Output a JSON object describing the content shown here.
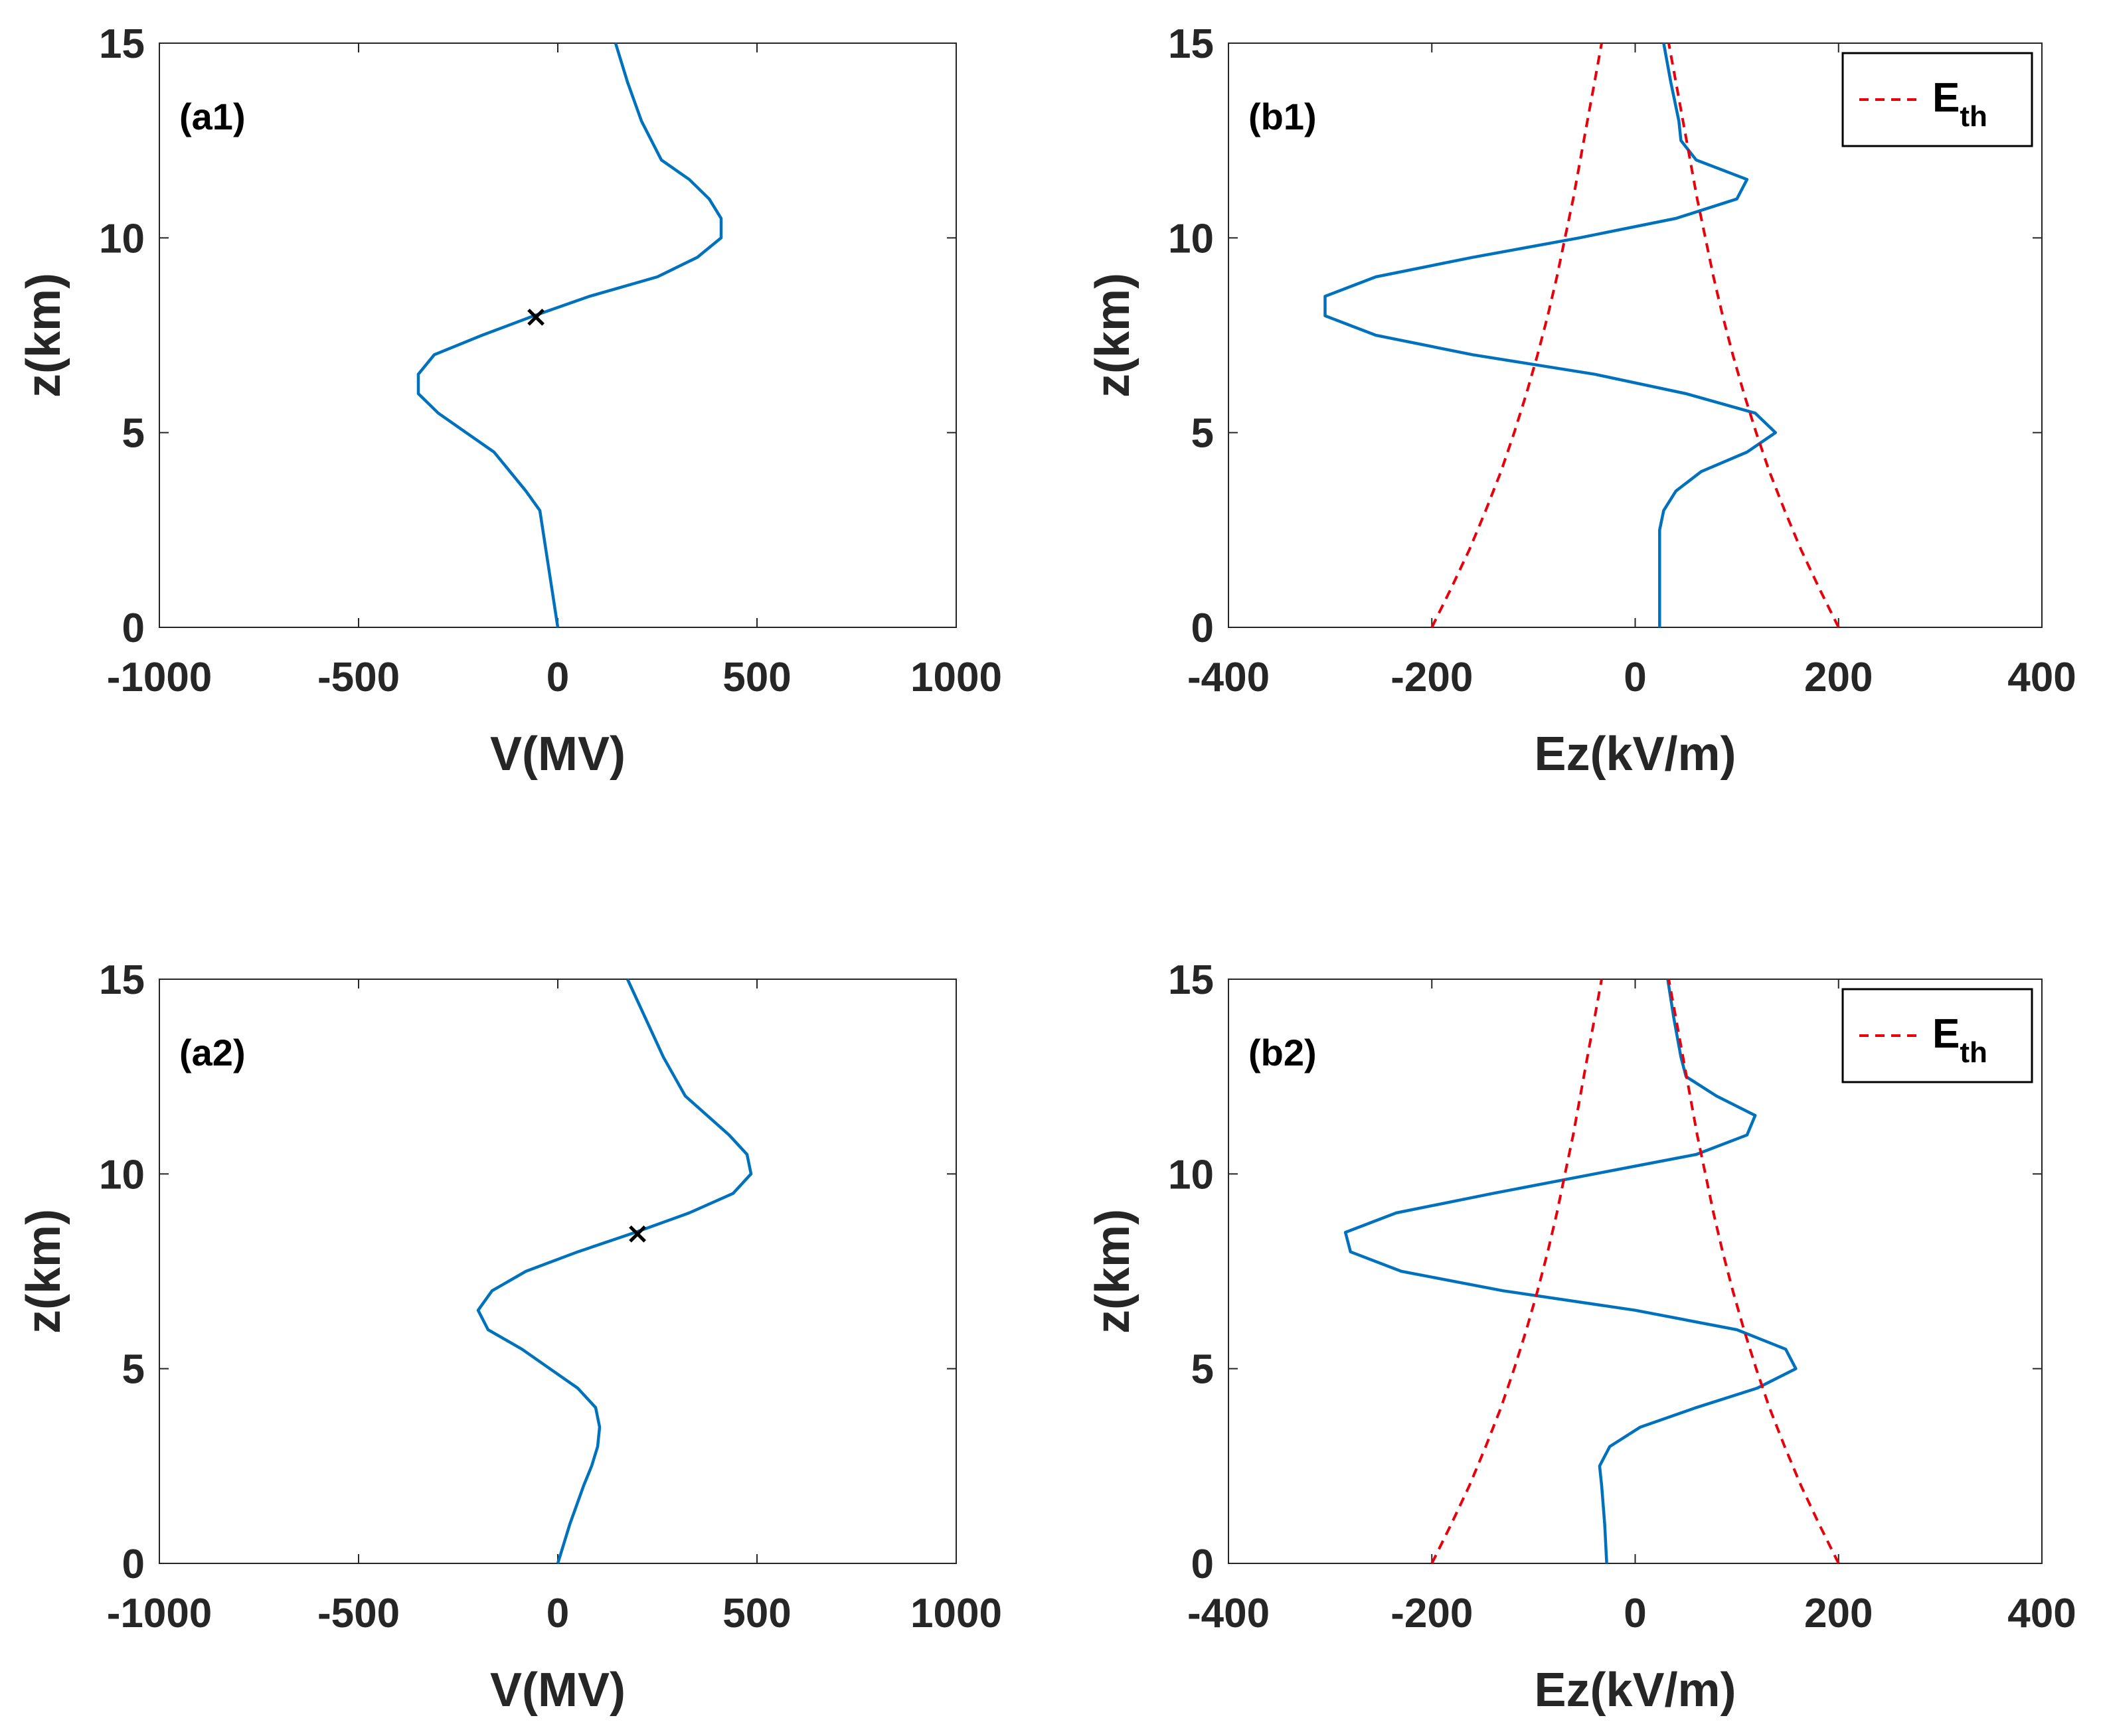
{
  "colors": {
    "curve": "#0072BD",
    "threshold": "#E8000B",
    "axis": "#262626",
    "marker": "#000000"
  },
  "chart_data": [
    {
      "id": "a1",
      "type": "line",
      "panel_label": "(a1)",
      "xlabel": "V(MV)",
      "ylabel": "z(km)",
      "xlim": [
        -1000,
        1000
      ],
      "ylim": [
        0,
        15
      ],
      "xticks": [
        "-1000",
        "-500",
        "0",
        "500",
        "1000"
      ],
      "yticks": [
        "0",
        "5",
        "10",
        "15"
      ],
      "series": [
        {
          "name": "V",
          "z": [
            0,
            1,
            2,
            3,
            3.5,
            4,
            4.5,
            5,
            5.5,
            6,
            6.5,
            7,
            7.5,
            8,
            8.5,
            9,
            9.5,
            10,
            10.5,
            11,
            11.5,
            12,
            13,
            14,
            15
          ],
          "v": [
            0,
            -15,
            -30,
            -45,
            -80,
            -120,
            -160,
            -230,
            -300,
            -350,
            -350,
            -310,
            -190,
            -60,
            80,
            250,
            350,
            410,
            410,
            380,
            330,
            260,
            210,
            175,
            145
          ]
        }
      ],
      "marker": {
        "label": "×",
        "x": -55,
        "z": 8
      }
    },
    {
      "id": "b1",
      "type": "line",
      "panel_label": "(b1)",
      "xlabel": "Ez(kV/m)",
      "ylabel": "z(km)",
      "xlim": [
        -400,
        400
      ],
      "ylim": [
        0,
        15
      ],
      "xticks": [
        "-400",
        "-200",
        "0",
        "200",
        "400"
      ],
      "yticks": [
        "0",
        "5",
        "10",
        "15"
      ],
      "legend": {
        "main": "E",
        "sub": "th",
        "position": "top-right"
      },
      "series": [
        {
          "name": "Ez",
          "z": [
            0,
            1,
            2,
            2.5,
            3,
            3.5,
            4,
            4.5,
            5,
            5.5,
            6,
            6.5,
            7,
            7.5,
            8,
            8.5,
            9,
            9.5,
            10,
            10.5,
            11,
            11.5,
            12,
            12.5,
            13,
            14,
            15
          ],
          "v": [
            24,
            24,
            24,
            24,
            28,
            40,
            65,
            110,
            138,
            118,
            50,
            -40,
            -160,
            -255,
            -305,
            -305,
            -255,
            -160,
            -55,
            40,
            100,
            110,
            60,
            45,
            43,
            35,
            28
          ]
        },
        {
          "name": "E_th (+)",
          "z": [
            0,
            1,
            2,
            3,
            4,
            5,
            6,
            7,
            8,
            9,
            10,
            11,
            12,
            13,
            14,
            15
          ],
          "v": [
            200,
            181,
            163,
            147,
            132,
            119,
            107,
            96,
            86,
            77,
            69,
            61,
            54,
            47,
            40,
            33
          ]
        },
        {
          "name": "E_th (-)",
          "z": [
            0,
            1,
            2,
            3,
            4,
            5,
            6,
            7,
            8,
            9,
            10,
            11,
            12,
            13,
            14,
            15
          ],
          "v": [
            -200,
            -181,
            -163,
            -147,
            -132,
            -119,
            -107,
            -96,
            -86,
            -77,
            -69,
            -61,
            -54,
            -47,
            -40,
            -33
          ]
        }
      ]
    },
    {
      "id": "a2",
      "type": "line",
      "panel_label": "(a2)",
      "xlabel": "V(MV)",
      "ylabel": "z(km)",
      "xlim": [
        -1000,
        1000
      ],
      "ylim": [
        0,
        15
      ],
      "xticks": [
        "-1000",
        "-500",
        "0",
        "500",
        "1000"
      ],
      "yticks": [
        "0",
        "5",
        "10",
        "15"
      ],
      "series": [
        {
          "name": "V",
          "z": [
            0,
            1,
            2,
            2.5,
            3,
            3.5,
            4,
            4.5,
            5,
            5.5,
            6,
            6.5,
            7,
            7.5,
            8,
            8.5,
            9,
            9.5,
            10,
            10.5,
            11,
            12,
            13,
            14,
            15
          ],
          "v": [
            0,
            30,
            65,
            85,
            100,
            105,
            95,
            50,
            -20,
            -90,
            -175,
            -200,
            -165,
            -80,
            50,
            195,
            330,
            440,
            485,
            475,
            430,
            320,
            265,
            220,
            175
          ]
        }
      ],
      "marker": {
        "label": "×",
        "x": 200,
        "z": 8.5
      }
    },
    {
      "id": "b2",
      "type": "line",
      "panel_label": "(b2)",
      "xlabel": "Ez(kV/m)",
      "ylabel": "z(km)",
      "xlim": [
        -400,
        400
      ],
      "ylim": [
        0,
        15
      ],
      "xticks": [
        "-400",
        "-200",
        "0",
        "200",
        "400"
      ],
      "yticks": [
        "0",
        "5",
        "10",
        "15"
      ],
      "legend": {
        "main": "E",
        "sub": "th",
        "position": "top-right"
      },
      "series": [
        {
          "name": "Ez",
          "z": [
            0,
            1,
            2,
            2.5,
            3,
            3.5,
            4,
            4.5,
            5,
            5.5,
            6,
            6.5,
            7,
            7.5,
            8,
            8.5,
            9,
            9.5,
            10,
            10.5,
            11,
            11.5,
            12,
            12.5,
            13,
            14,
            15
          ],
          "v": [
            -28,
            -30,
            -33,
            -35,
            -25,
            5,
            60,
            120,
            158,
            148,
            100,
            0,
            -130,
            -230,
            -280,
            -285,
            -235,
            -140,
            -40,
            60,
            110,
            118,
            80,
            50,
            45,
            38,
            32
          ]
        },
        {
          "name": "E_th (+)",
          "z": [
            0,
            1,
            2,
            3,
            4,
            5,
            6,
            7,
            8,
            9,
            10,
            11,
            12,
            13,
            14,
            15
          ],
          "v": [
            200,
            181,
            163,
            147,
            132,
            119,
            107,
            96,
            86,
            77,
            69,
            61,
            54,
            47,
            40,
            33
          ]
        },
        {
          "name": "E_th (-)",
          "z": [
            0,
            1,
            2,
            3,
            4,
            5,
            6,
            7,
            8,
            9,
            10,
            11,
            12,
            13,
            14,
            15
          ],
          "v": [
            -200,
            -181,
            -163,
            -147,
            -132,
            -119,
            -107,
            -96,
            -86,
            -77,
            -69,
            -61,
            -54,
            -47,
            -40,
            -33
          ]
        }
      ]
    }
  ]
}
